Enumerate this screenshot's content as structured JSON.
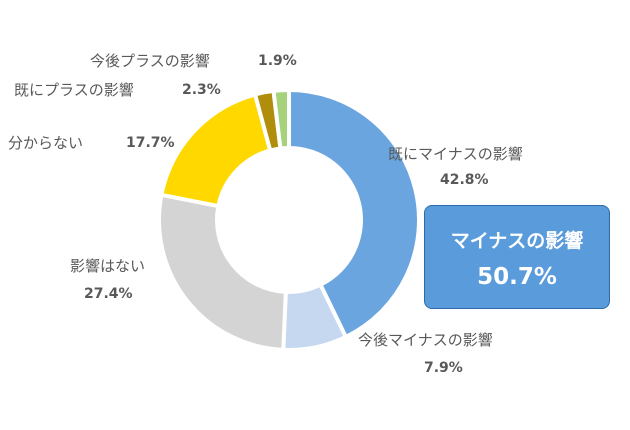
{
  "chart_data": {
    "type": "pie",
    "donut": true,
    "categories": [
      "既にマイナスの影響",
      "今後マイナスの影響",
      "影響はない",
      "分からない",
      "既にプラスの影響",
      "今後プラスの影響"
    ],
    "values": [
      42.8,
      7.9,
      27.4,
      17.7,
      2.3,
      1.9
    ],
    "percent_labels": [
      "42.8%",
      "7.9%",
      "27.4%",
      "17.7%",
      "2.3%",
      "1.9%"
    ],
    "colors": [
      "#6aa5e0",
      "#c6d7f0",
      "#d4d4d4",
      "#ffd800",
      "#b08d0a",
      "#a6d27a"
    ],
    "start_angle_deg": 0,
    "direction": "clockwise",
    "legend": "none"
  },
  "callout": {
    "title": "マイナスの影響",
    "value": "50.7%",
    "color": "#5a9bdb"
  }
}
